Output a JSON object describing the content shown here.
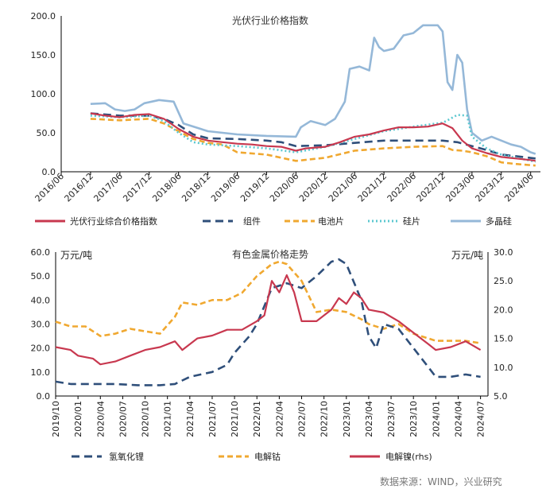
{
  "source": "数据来源：WIND，兴业研究",
  "chart_data": [
    {
      "type": "line",
      "title": "光伏行业价格指数",
      "ylim": [
        0,
        200
      ],
      "yticks": [
        "0.0",
        "50.0",
        "100.0",
        "150.0",
        "200.0"
      ],
      "xticks": [
        "2016/06",
        "2016/12",
        "2017/06",
        "2017/12",
        "2018/06",
        "2018/12",
        "2019/06",
        "2019/12",
        "2020/06",
        "2020/12",
        "2021/06",
        "2021/12",
        "2022/06",
        "2022/12",
        "2023/06",
        "2023/12",
        "2024/06"
      ],
      "legend_position": "bottom",
      "colors": {
        "光伏行业综合价格指数": "#c8384f",
        "组件": "#2f4f7a",
        "电池片": "#f0a830",
        "硅片": "#5cc8d0",
        "多晶硅": "#95b8d8"
      },
      "series": [
        {
          "name": "光伏行业综合价格指数",
          "style": "solid",
          "x": [
            "2016-12",
            "2017-03",
            "2017-06",
            "2017-09",
            "2017-12",
            "2018-03",
            "2018-06",
            "2018-09",
            "2018-12",
            "2019-03",
            "2019-06",
            "2019-09",
            "2019-12",
            "2020-03",
            "2020-06",
            "2020-08",
            "2020-12",
            "2021-03",
            "2021-06",
            "2021-09",
            "2021-12",
            "2022-03",
            "2022-06",
            "2022-09",
            "2022-12",
            "2023-02",
            "2023-04",
            "2023-06",
            "2023-09",
            "2023-12",
            "2024-03",
            "2024-06",
            "2024-07"
          ],
          "values": [
            75,
            72,
            70,
            73,
            74,
            68,
            55,
            45,
            40,
            38,
            36,
            35,
            33,
            32,
            27,
            30,
            32,
            38,
            45,
            48,
            53,
            57,
            57,
            58,
            62,
            56,
            40,
            30,
            24,
            19,
            17,
            15,
            14
          ]
        },
        {
          "name": "组件",
          "style": "dashed",
          "x": [
            "2016-12",
            "2017-06",
            "2017-12",
            "2018-03",
            "2018-06",
            "2018-09",
            "2018-12",
            "2019-06",
            "2019-12",
            "2020-03",
            "2020-06",
            "2020-12",
            "2021-06",
            "2021-12",
            "2022-06",
            "2022-12",
            "2023-03",
            "2023-06",
            "2023-09",
            "2023-12",
            "2024-03",
            "2024-07"
          ],
          "values": [
            75,
            72,
            72,
            68,
            60,
            48,
            43,
            42,
            40,
            38,
            33,
            34,
            37,
            40,
            40,
            40,
            38,
            33,
            28,
            22,
            20,
            17
          ]
        },
        {
          "name": "电池片",
          "style": "dashed",
          "x": [
            "2016-12",
            "2017-06",
            "2017-12",
            "2018-03",
            "2018-06",
            "2018-09",
            "2018-12",
            "2019-03",
            "2019-06",
            "2019-12",
            "2020-03",
            "2020-06",
            "2020-12",
            "2021-06",
            "2021-12",
            "2022-06",
            "2022-12",
            "2023-02",
            "2023-04",
            "2023-06",
            "2023-09",
            "2023-12",
            "2024-03",
            "2024-07"
          ],
          "values": [
            68,
            66,
            68,
            62,
            52,
            42,
            37,
            35,
            25,
            22,
            18,
            14,
            18,
            27,
            30,
            32,
            33,
            28,
            27,
            25,
            20,
            12,
            10,
            8
          ]
        },
        {
          "name": "硅片",
          "style": "dotted",
          "x": [
            "2016-12",
            "2017-06",
            "2017-12",
            "2018-03",
            "2018-06",
            "2018-09",
            "2018-12",
            "2019-06",
            "2019-12",
            "2020-06",
            "2020-12",
            "2021-06",
            "2021-12",
            "2022-06",
            "2022-12",
            "2023-01",
            "2023-03",
            "2023-05",
            "2023-06",
            "2023-09",
            "2023-12",
            "2024-03",
            "2024-07"
          ],
          "values": [
            72,
            70,
            72,
            65,
            50,
            38,
            35,
            33,
            30,
            25,
            32,
            42,
            52,
            58,
            63,
            66,
            73,
            72,
            45,
            30,
            22,
            18,
            13
          ]
        },
        {
          "name": "多晶硅",
          "style": "solid",
          "x": [
            "2016-12",
            "2017-03",
            "2017-05",
            "2017-07",
            "2017-09",
            "2017-11",
            "2018-02",
            "2018-05",
            "2018-07",
            "2018-12",
            "2019-06",
            "2019-12",
            "2020-06",
            "2020-07",
            "2020-09",
            "2020-12",
            "2021-02",
            "2021-04",
            "2021-05",
            "2021-07",
            "2021-09",
            "2021-10",
            "2021-11",
            "2021-12",
            "2022-02",
            "2022-04",
            "2022-06",
            "2022-08",
            "2022-11",
            "2022-12",
            "2023-01",
            "2023-02",
            "2023-03",
            "2023-04",
            "2023-05",
            "2023-06",
            "2023-08",
            "2023-10",
            "2023-12",
            "2024-02",
            "2024-04",
            "2024-06",
            "2024-07"
          ],
          "values": [
            87,
            88,
            80,
            78,
            80,
            88,
            92,
            90,
            62,
            52,
            48,
            46,
            45,
            57,
            65,
            60,
            68,
            90,
            132,
            135,
            130,
            172,
            160,
            155,
            158,
            175,
            178,
            188,
            188,
            180,
            115,
            105,
            150,
            140,
            80,
            50,
            40,
            45,
            40,
            35,
            32,
            25,
            23
          ]
        }
      ]
    },
    {
      "type": "line",
      "title": "有色金属价格走势",
      "ylabel_left": "万元/吨",
      "ylabel_right": "万元/吨",
      "ylim_left": [
        0,
        60
      ],
      "ylim_right": [
        5,
        30
      ],
      "yticks_left": [
        "0.0",
        "10.0",
        "20.0",
        "30.0",
        "40.0",
        "50.0",
        "60.0"
      ],
      "yticks_right": [
        "5.0",
        "10.0",
        "15.0",
        "20.0",
        "25.0",
        "30.0"
      ],
      "xticks": [
        "2019/10",
        "2020/01",
        "2020/04",
        "2020/07",
        "2020/10",
        "2021/01",
        "2021/04",
        "2021/07",
        "2021/10",
        "2022/01",
        "2022/04",
        "2022/07",
        "2022/10",
        "2023/01",
        "2023/04",
        "2023/07",
        "2023/10",
        "2024/01",
        "2024/04",
        "2024/07"
      ],
      "legend_position": "bottom",
      "colors": {
        "氢氧化锂": "#2f4f7a",
        "电解钴": "#f0a830",
        "电解镍(rhs)": "#c8384f"
      },
      "series": [
        {
          "name": "氢氧化锂",
          "axis": "left",
          "style": "dashed",
          "x": [
            "2019-10",
            "2019-12",
            "2020-03",
            "2020-06",
            "2020-09",
            "2020-12",
            "2021-02",
            "2021-04",
            "2021-07",
            "2021-09",
            "2021-10",
            "2021-12",
            "2022-01",
            "2022-03",
            "2022-05",
            "2022-07",
            "2022-09",
            "2022-11",
            "2022-12",
            "2023-01",
            "2023-03",
            "2023-04",
            "2023-05",
            "2023-06",
            "2023-08",
            "2023-10",
            "2023-12",
            "2024-01",
            "2024-03",
            "2024-05",
            "2024-07"
          ],
          "values": [
            6,
            5,
            5,
            5,
            4.5,
            4.5,
            5,
            8,
            10,
            13,
            18,
            25,
            30,
            45,
            47,
            45,
            50,
            56,
            57,
            55,
            40,
            25,
            20,
            30,
            28,
            20,
            12,
            8,
            8,
            9,
            8
          ]
        },
        {
          "name": "电解钴",
          "axis": "left",
          "style": "dashed",
          "x": [
            "2019-10",
            "2019-12",
            "2020-02",
            "2020-04",
            "2020-06",
            "2020-08",
            "2020-10",
            "2020-12",
            "2021-02",
            "2021-03",
            "2021-05",
            "2021-07",
            "2021-09",
            "2021-11",
            "2022-01",
            "2022-03",
            "2022-04",
            "2022-05",
            "2022-07",
            "2022-09",
            "2022-11",
            "2023-01",
            "2023-03",
            "2023-04",
            "2023-06",
            "2023-08",
            "2023-10",
            "2023-12",
            "2024-01",
            "2024-03",
            "2024-05",
            "2024-07"
          ],
          "values": [
            31,
            29,
            29,
            25,
            26,
            28,
            27,
            26,
            33,
            39,
            38,
            40,
            40,
            43,
            50,
            55,
            56,
            55,
            48,
            35,
            36,
            35,
            32,
            30,
            28,
            30,
            26,
            24,
            23,
            23,
            23,
            22
          ]
        },
        {
          "name": "电解镍(rhs)",
          "axis": "right",
          "style": "solid",
          "x": [
            "2019-10",
            "2019-12",
            "2020-01",
            "2020-03",
            "2020-04",
            "2020-06",
            "2020-08",
            "2020-10",
            "2020-12",
            "2021-02",
            "2021-03",
            "2021-05",
            "2021-07",
            "2021-09",
            "2021-11",
            "2022-01",
            "2022-02",
            "2022-03",
            "2022-04",
            "2022-05",
            "2022-06",
            "2022-07",
            "2022-09",
            "2022-11",
            "2022-12",
            "2023-01",
            "2023-02",
            "2023-03",
            "2023-04",
            "2023-06",
            "2023-08",
            "2023-10",
            "2023-12",
            "2024-01",
            "2024-03",
            "2024-05",
            "2024-07"
          ],
          "values": [
            13.5,
            13,
            12,
            11.5,
            10.5,
            11,
            12,
            13,
            13.5,
            14.5,
            13,
            15,
            15.5,
            16.5,
            16.5,
            18,
            19,
            25,
            23,
            26,
            23,
            18,
            18,
            20,
            22,
            21,
            23,
            22,
            20,
            19.5,
            18,
            16,
            14,
            13,
            13.5,
            14.5,
            13
          ]
        }
      ]
    }
  ]
}
